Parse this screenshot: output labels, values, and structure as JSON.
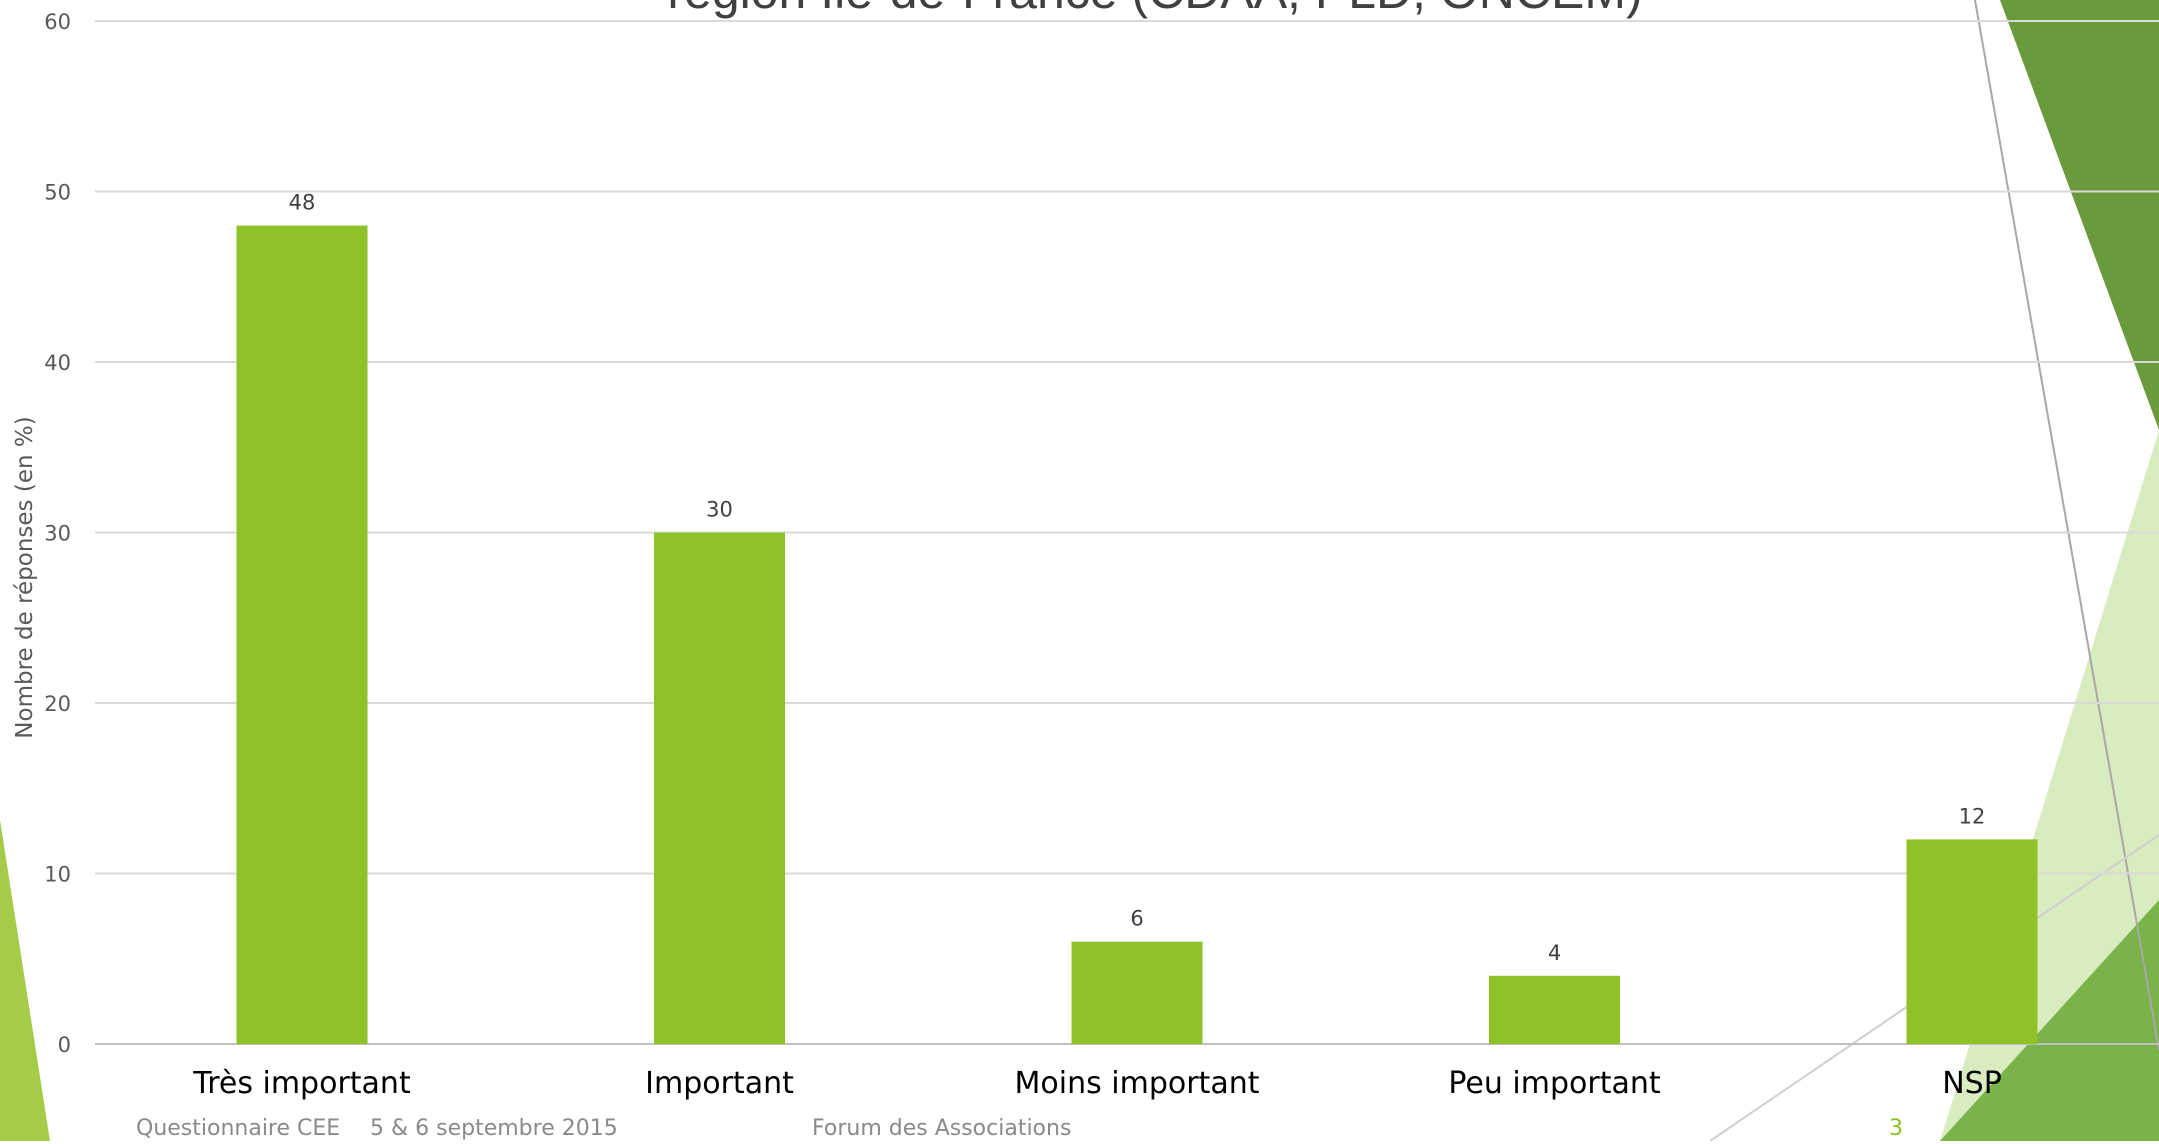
{
  "chart_data": {
    "type": "bar",
    "title": "région Ile-de-France (CDAA, PLD, ONCEM)",
    "categories": [
      "Très important",
      "Important",
      "Moins important",
      "Peu important",
      "NSP"
    ],
    "values": [
      48,
      30,
      6,
      4,
      12
    ],
    "data_labels": [
      "48",
      "30",
      "6",
      "4",
      "12"
    ],
    "ylabel": "Nombre de réponses (en %)",
    "ylim": [
      0,
      60
    ],
    "yticks": [
      0,
      10,
      20,
      30,
      40,
      50,
      60
    ],
    "grid": true,
    "bar_color": "#8fc228"
  },
  "footer": {
    "left": "Questionnaire CEE",
    "date": "5 & 6 septembre 2015",
    "center": "Forum des Associations",
    "page_number": "3"
  },
  "theme": {
    "dark_green": "#5f9133",
    "mid_green": "#79b34a",
    "light_green": "#d9ecbf",
    "lime": "#a5cc49"
  }
}
